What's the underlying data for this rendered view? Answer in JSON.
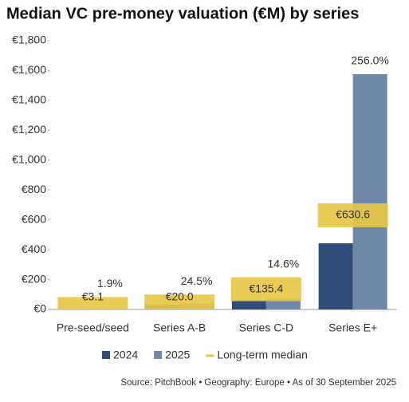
{
  "chart_data": {
    "type": "bar",
    "title": "Median VC pre-money valuation (€M) by series",
    "categories": [
      "Pre-seed/seed",
      "Series A-B",
      "Series C-D",
      "Series E+"
    ],
    "series": [
      {
        "name": "2024",
        "color": "#2f4b78",
        "values": [
          3,
          32,
          64,
          443
        ]
      },
      {
        "name": "2025",
        "color": "#7088a7",
        "values": [
          3.1,
          40,
          73,
          1576
        ]
      },
      {
        "name": "Long-term median",
        "color": "#e6c846",
        "values": [
          3.1,
          20.0,
          135.4,
          630.6
        ],
        "value_labels": [
          "€3.1",
          "€20.0",
          "€135.4",
          "€630.6"
        ]
      }
    ],
    "annotations": [
      "1.9%",
      "24.5%",
      "14.6%",
      "256.0%"
    ],
    "ylim": [
      0,
      1800
    ],
    "yticks": [
      {
        "value": 0,
        "label": "€0"
      },
      {
        "value": 200,
        "label": "€200"
      },
      {
        "value": 400,
        "label": "€400"
      },
      {
        "value": 600,
        "label": "€600"
      },
      {
        "value": 800,
        "label": "€800"
      },
      {
        "value": 1000,
        "label": "€1,000"
      },
      {
        "value": 1200,
        "label": "€1,200"
      },
      {
        "value": 1400,
        "label": "€1,400"
      },
      {
        "value": 1600,
        "label": "€1,600"
      },
      {
        "value": 1800,
        "label": "€1,800"
      }
    ],
    "source": "Source: PitchBook  •  Geography: Europe  •  As of 30 September 2025"
  }
}
